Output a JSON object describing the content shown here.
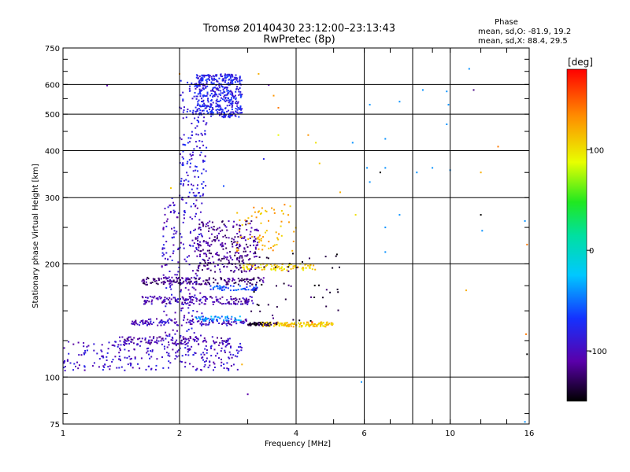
{
  "chart_data": {
    "type": "scatter",
    "title_line1": "Tromsø 20140430 23:12:00–23:13:43",
    "title_line2": "RwPretec (8p)",
    "phase_header": "Phase",
    "stats_o": "mean, sd,O:  -81.9, 19.2",
    "stats_x": "mean, sd,X:  88.4, 29.5",
    "xlabel": "Frequency [MHz]",
    "ylabel": "Stationary phase Virtual Height [km]",
    "x_scale": "log",
    "y_scale": "log",
    "xlim": [
      1,
      16
    ],
    "ylim": [
      75,
      750
    ],
    "x_ticks": [
      {
        "v": 1,
        "label": "1"
      },
      {
        "v": 2,
        "label": "2"
      },
      {
        "v": 4,
        "label": "4"
      },
      {
        "v": 6,
        "label": "6"
      },
      {
        "v": 10,
        "label": "10"
      },
      {
        "v": 16,
        "label": "16"
      }
    ],
    "x_grid": [
      2,
      4,
      6,
      8,
      10
    ],
    "y_ticks": [
      {
        "v": 75,
        "label": "75"
      },
      {
        "v": 100,
        "label": "100"
      },
      {
        "v": 200,
        "label": "200"
      },
      {
        "v": 300,
        "label": "300"
      },
      {
        "v": 400,
        "label": "400"
      },
      {
        "v": 500,
        "label": "500"
      },
      {
        "v": 600,
        "label": "600"
      },
      {
        "v": 750,
        "label": "750"
      }
    ],
    "y_grid": [
      100,
      200,
      300,
      400,
      500,
      600
    ],
    "grid": true,
    "colorbar": {
      "unit": "[deg]",
      "range": [
        -150,
        180
      ],
      "ticks": [
        {
          "v": 100,
          "label": "100"
        },
        {
          "v": 0,
          "label": "0"
        },
        {
          "v": -100,
          "label": "-100"
        }
      ]
    },
    "clusters": [
      {
        "desc": "O-trace low",
        "x_range": [
          1.0,
          2.9
        ],
        "y_range": [
          104,
          125
        ],
        "phase": -95,
        "n": 260
      },
      {
        "desc": "O-trace rising",
        "x_range": [
          1.8,
          2.3
        ],
        "y_range": [
          125,
          300
        ],
        "phase": -95,
        "n": 220
      },
      {
        "desc": "O-trace upper",
        "x_range": [
          2.0,
          2.35
        ],
        "y_range": [
          300,
          620
        ],
        "phase": -85,
        "n": 160
      },
      {
        "desc": "F2 block",
        "x_range": [
          2.2,
          2.9
        ],
        "y_range": [
          490,
          640
        ],
        "phase": -80,
        "n": 420
      },
      {
        "desc": "F1 blob",
        "x_range": [
          2.2,
          3.2
        ],
        "y_range": [
          190,
          260
        ],
        "phase": -115,
        "n": 280
      },
      {
        "desc": "band 180",
        "x_range": [
          1.6,
          3.3
        ],
        "y_range": [
          176,
          184
        ],
        "phase": -120,
        "n": 150
      },
      {
        "desc": "band 160",
        "x_range": [
          1.6,
          3.1
        ],
        "y_range": [
          156,
          164
        ],
        "phase": -108,
        "n": 150
      },
      {
        "desc": "band 140",
        "x_range": [
          1.5,
          3.0
        ],
        "y_range": [
          137,
          143
        ],
        "phase": -100,
        "n": 130
      },
      {
        "desc": "band 125",
        "x_range": [
          1.4,
          2.7
        ],
        "y_range": [
          122,
          128
        ],
        "phase": -105,
        "n": 120
      },
      {
        "desc": "X band 195",
        "x_range": [
          2.9,
          4.5
        ],
        "y_range": [
          192,
          200
        ],
        "phase": 105,
        "n": 90
      },
      {
        "desc": "X band 172",
        "x_range": [
          2.4,
          3.2
        ],
        "y_range": [
          170,
          175
        ],
        "phase": -60,
        "n": 60
      },
      {
        "desc": "X band 140",
        "x_range": [
          3.2,
          5.0
        ],
        "y_range": [
          136,
          140
        ],
        "phase": 110,
        "n": 130
      },
      {
        "desc": "X band 140 purple",
        "x_range": [
          3.0,
          3.6
        ],
        "y_range": [
          137,
          140
        ],
        "phase": -135,
        "n": 50
      },
      {
        "desc": "X band 143 cyan",
        "x_range": [
          2.2,
          2.9
        ],
        "y_range": [
          141,
          145
        ],
        "phase": -40,
        "n": 50
      },
      {
        "desc": "X upper 240",
        "x_range": [
          2.8,
          4.0
        ],
        "y_range": [
          215,
          290
        ],
        "phase": 120,
        "n": 70
      },
      {
        "desc": "purple descent",
        "x_range": [
          3.0,
          5.2
        ],
        "y_range": [
          140,
          215
        ],
        "phase": -135,
        "n": 50
      }
    ],
    "sparse_points": [
      [
        1.3,
        596,
        -110
      ],
      [
        1.9,
        318,
        110
      ],
      [
        2.6,
        322,
        -60
      ],
      [
        3.2,
        640,
        120
      ],
      [
        3.4,
        598,
        -110
      ],
      [
        3.5,
        560,
        130
      ],
      [
        3.6,
        520,
        140
      ],
      [
        3.3,
        380,
        -80
      ],
      [
        3.6,
        440,
        90
      ],
      [
        4.3,
        440,
        130
      ],
      [
        4.6,
        370,
        110
      ],
      [
        4.5,
        420,
        100
      ],
      [
        5.2,
        310,
        120
      ],
      [
        5.7,
        270,
        100
      ],
      [
        5.6,
        420,
        -40
      ],
      [
        6.2,
        530,
        -40
      ],
      [
        6.1,
        360,
        -40
      ],
      [
        6.2,
        330,
        -40
      ],
      [
        6.6,
        350,
        -150
      ],
      [
        6.8,
        430,
        -40
      ],
      [
        6.8,
        360,
        -40
      ],
      [
        6.8,
        250,
        -40
      ],
      [
        6.8,
        215,
        -40
      ],
      [
        7.4,
        540,
        -40
      ],
      [
        7.4,
        270,
        -40
      ],
      [
        8.2,
        350,
        -40
      ],
      [
        8.5,
        580,
        -40
      ],
      [
        9.0,
        360,
        -40
      ],
      [
        9.8,
        575,
        -40
      ],
      [
        9.8,
        470,
        -40
      ],
      [
        9.9,
        530,
        -40
      ],
      [
        10.0,
        355,
        -40
      ],
      [
        11.2,
        660,
        -40
      ],
      [
        11.5,
        580,
        -120
      ],
      [
        12.0,
        350,
        120
      ],
      [
        12.0,
        270,
        -150
      ],
      [
        12.1,
        245,
        -40
      ],
      [
        11.0,
        170,
        120
      ],
      [
        13.3,
        410,
        140
      ],
      [
        15.6,
        260,
        -40
      ],
      [
        15.8,
        225,
        140
      ],
      [
        15.7,
        130,
        140
      ],
      [
        15.8,
        115,
        -150
      ],
      [
        15.6,
        76,
        -40
      ],
      [
        3.0,
        90,
        -110
      ],
      [
        5.9,
        97,
        -40
      ],
      [
        4.4,
        140,
        170
      ],
      [
        2.9,
        108,
        120
      ],
      [
        2.0,
        640,
        130
      ]
    ]
  }
}
